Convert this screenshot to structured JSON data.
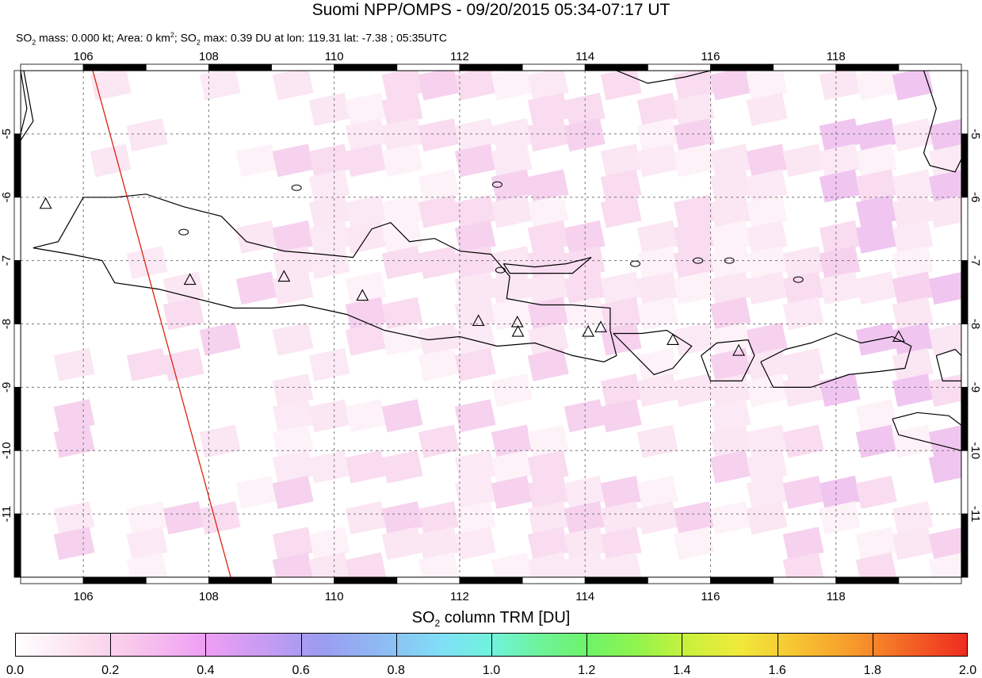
{
  "title": "Suomi NPP/OMPS - 09/20/2015 05:34-07:17 UT",
  "subtitle": {
    "mass_prefix": "SO",
    "mass_sub": "2",
    "mass_text": " mass: 0.000 kt; Area: 0 km",
    "area_sup": "2",
    "max_prefix": "; SO",
    "max_sub": "2",
    "max_text": " max: 0.39 DU at lon: 119.31 lat: -7.38 ; 05:35UTC"
  },
  "map": {
    "lon_range": [
      105,
      120
    ],
    "lat_range": [
      -12,
      -4
    ],
    "lon_ticks": [
      "106",
      "108",
      "110",
      "112",
      "114",
      "116",
      "118"
    ],
    "lat_ticks": [
      "-5",
      "-6",
      "-7",
      "-8",
      "-9",
      "-10",
      "-11"
    ],
    "volcanoes": [
      {
        "lon": 105.4,
        "lat": -6.1
      },
      {
        "lon": 107.7,
        "lat": -7.3
      },
      {
        "lon": 109.2,
        "lat": -7.25
      },
      {
        "lon": 110.45,
        "lat": -7.55
      },
      {
        "lon": 112.3,
        "lat": -7.95
      },
      {
        "lon": 112.92,
        "lat": -7.97
      },
      {
        "lon": 112.93,
        "lat": -8.12
      },
      {
        "lon": 114.05,
        "lat": -8.12
      },
      {
        "lon": 114.25,
        "lat": -8.05
      },
      {
        "lon": 115.4,
        "lat": -8.25
      },
      {
        "lon": 116.45,
        "lat": -8.42
      },
      {
        "lon": 119.0,
        "lat": -8.2
      }
    ],
    "swath_edge": [
      [
        106.15,
        -4.0
      ],
      [
        108.35,
        -12.0
      ]
    ],
    "colors": {
      "swath_edge": "#dd2211",
      "coast": "#000000",
      "grid": "#777777"
    }
  },
  "colorbar": {
    "title_prefix": "SO",
    "title_sub": "2",
    "title_suffix": " column TRM [DU]",
    "range": [
      0.0,
      2.0
    ],
    "labels": [
      "0.0",
      "0.2",
      "0.4",
      "0.6",
      "0.8",
      "1.0",
      "1.2",
      "1.4",
      "1.6",
      "1.8",
      "2.0"
    ]
  }
}
